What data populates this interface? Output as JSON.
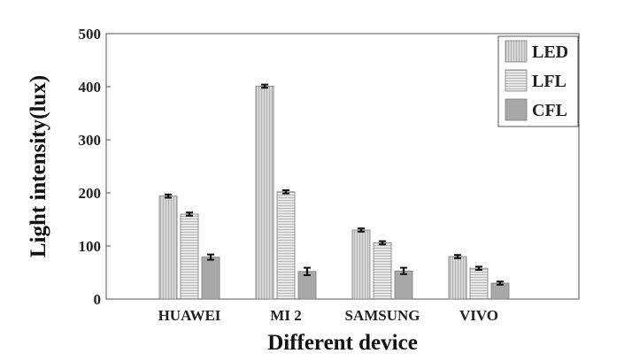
{
  "chart_data": {
    "type": "bar",
    "categories": [
      "HUAWEI",
      "MI 2",
      "SAMSUNG",
      "VIVO"
    ],
    "series": [
      {
        "name": "LED",
        "values": [
          194,
          401,
          130,
          80
        ],
        "errors": [
          3,
          3,
          3,
          3
        ],
        "color": "#d4d4d4",
        "pattern": "vertical"
      },
      {
        "name": "LFL",
        "values": [
          160,
          202,
          106,
          58
        ],
        "errors": [
          3,
          3,
          3,
          3
        ],
        "color": "#e6e6e6",
        "pattern": "horizontal"
      },
      {
        "name": "CFL",
        "values": [
          79,
          52,
          53,
          30
        ],
        "errors": [
          5,
          7,
          6,
          3
        ],
        "color": "#a8a8a8",
        "pattern": "none"
      }
    ],
    "title": "",
    "xlabel": "Different device",
    "ylabel": "Light intensity(lux)",
    "ylim": [
      0,
      500
    ],
    "yticks": [
      0,
      100,
      200,
      300,
      400,
      500
    ],
    "grid": false,
    "legend_position": "top-right"
  }
}
